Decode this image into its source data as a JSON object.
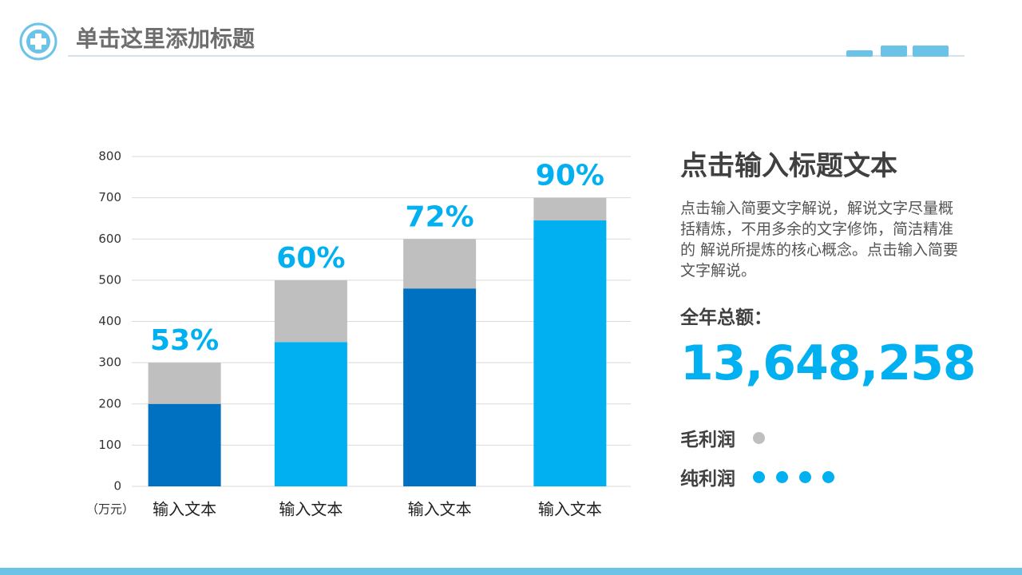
{
  "header": {
    "title": "单击这里添加标题"
  },
  "chart_data": {
    "type": "stacked_bar",
    "categories": [
      "输入文本",
      "输入文本",
      "输入文本",
      "输入文本"
    ],
    "series": [
      {
        "name": "纯利润",
        "color": [
          "#0070c0",
          "#00b0f0",
          "#0070c0",
          "#00b0f0"
        ],
        "values": [
          200,
          350,
          480,
          645
        ]
      },
      {
        "name": "毛利润",
        "color": "#bfbfbf",
        "values": [
          100,
          150,
          120,
          55
        ]
      }
    ],
    "bar_labels": [
      "53%",
      "60%",
      "72%",
      "90%"
    ],
    "y_label": "（万元）",
    "ylim": [
      0,
      800
    ],
    "yticks": [
      0,
      100,
      200,
      300,
      400,
      500,
      600,
      700,
      800
    ],
    "grid": true
  },
  "panel": {
    "heading": "点击输入标题文本",
    "paragraph": "点击输入简要文字解说，解说文字尽量概括精炼，不用多余的文字修饰，简洁精准的 解说所提炼的核心概念。点击输入简要文字解说。",
    "total_label": "全年总额：",
    "total_value": "13,648,258"
  }
}
